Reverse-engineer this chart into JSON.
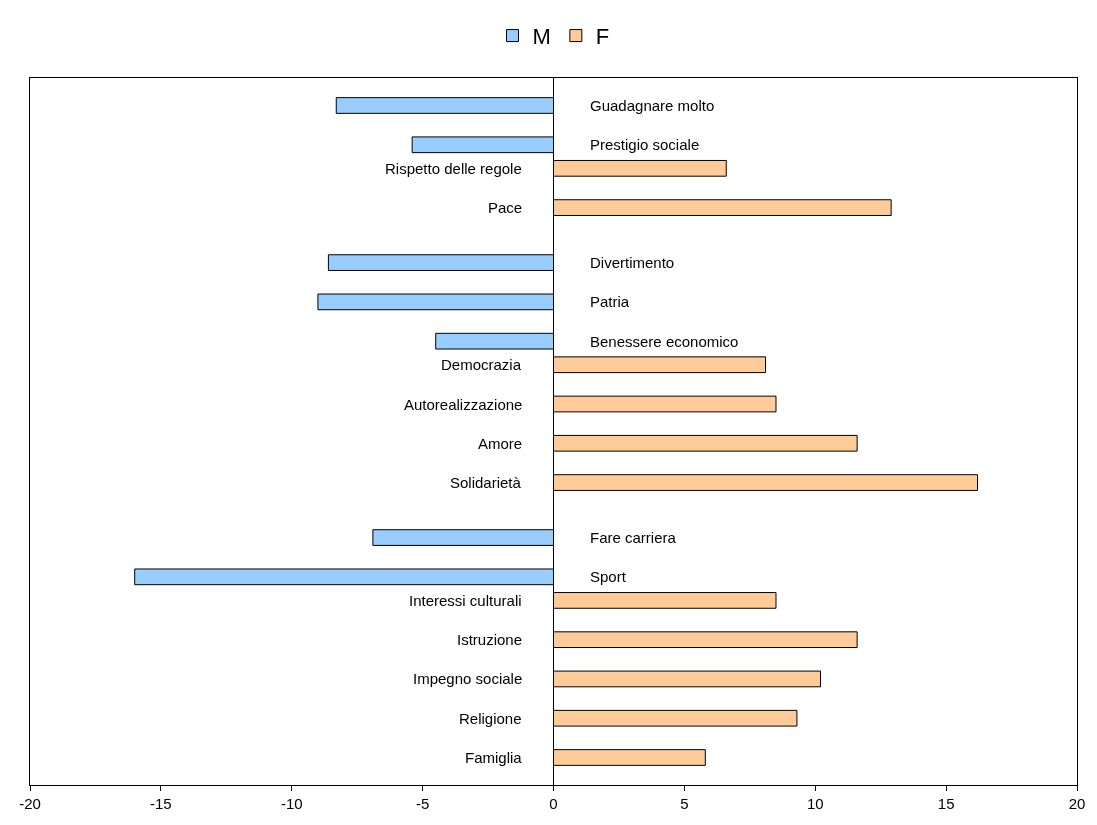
{
  "chart_data": {
    "type": "bar",
    "orientation": "horizontal",
    "categories": [
      "Guadagnare molto",
      "Prestigio sociale",
      "Rispetto delle regole",
      "Pace",
      "Divertimento",
      "Patria",
      "Benessere economico",
      "Democrazia",
      "Autorealizzazione",
      "Amore",
      "Solidarietà",
      "Fare carriera",
      "Sport",
      "Interessi culturali",
      "Istruzione",
      "Impegno sociale",
      "Religione",
      "Famiglia"
    ],
    "series": [
      {
        "name": "M",
        "color": "#99ccff",
        "values": [
          -8.3,
          -5.4,
          null,
          null,
          -8.6,
          -9.0,
          -4.5,
          null,
          null,
          null,
          null,
          -6.9,
          -16.0,
          null,
          null,
          null,
          null,
          null
        ]
      },
      {
        "name": "F",
        "color": "#ffcc99",
        "values": [
          null,
          null,
          6.6,
          12.9,
          null,
          null,
          null,
          8.1,
          8.5,
          11.6,
          16.2,
          null,
          null,
          8.5,
          11.6,
          10.2,
          9.3,
          5.8
        ]
      }
    ],
    "xlim": [
      -20,
      20
    ],
    "xticks": [
      -20,
      -15,
      -10,
      -5,
      0,
      5,
      10,
      15,
      20
    ],
    "legend": "top",
    "tick_labels": "x"
  }
}
